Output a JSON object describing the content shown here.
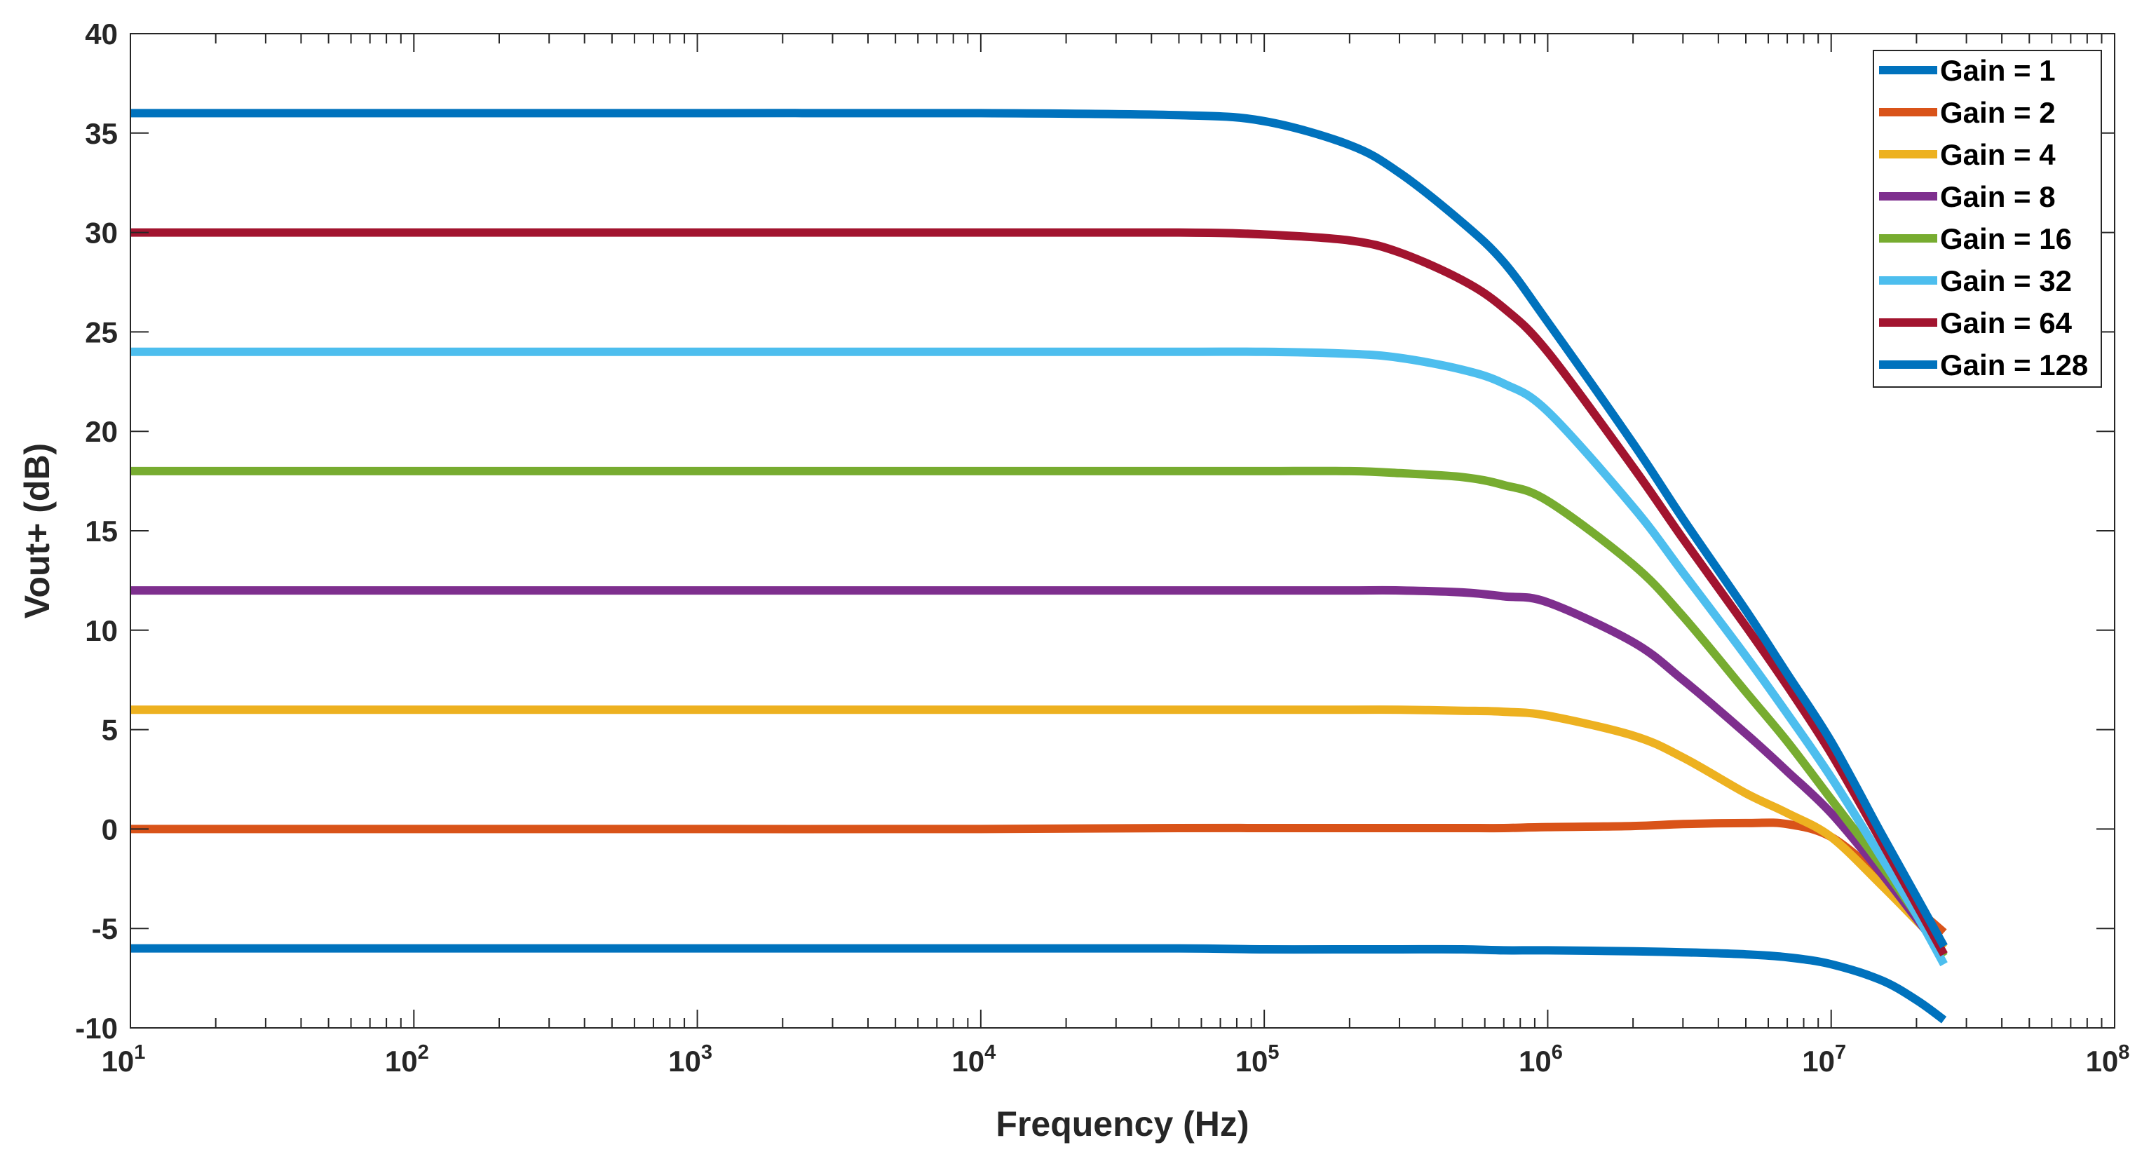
{
  "chart_data": {
    "type": "line",
    "title": "",
    "xlabel": "Frequency (Hz)",
    "ylabel": "Vout+  (dB)",
    "xscale": "log",
    "xlim": [
      10,
      100000000
    ],
    "ylim": [
      -10,
      40
    ],
    "x_ticks": [
      {
        "base": "10",
        "exp": "1"
      },
      {
        "base": "10",
        "exp": "2"
      },
      {
        "base": "10",
        "exp": "3"
      },
      {
        "base": "10",
        "exp": "4"
      },
      {
        "base": "10",
        "exp": "5"
      },
      {
        "base": "10",
        "exp": "6"
      },
      {
        "base": "10",
        "exp": "7"
      },
      {
        "base": "10",
        "exp": "8"
      }
    ],
    "y_ticks": [
      "-10",
      "-5",
      "0",
      "5",
      "10",
      "15",
      "20",
      "25",
      "30",
      "35",
      "40"
    ],
    "grid": false,
    "legend_position": "top-right",
    "x": [
      10,
      100,
      1000,
      10000,
      50000,
      100000,
      200000,
      300000,
      500000,
      700000,
      1000000,
      2000000,
      3000000,
      5000000,
      7000000,
      10000000,
      15000000,
      20000000,
      25000000
    ],
    "series": [
      {
        "name": "Gain = 1",
        "color": "#0072BD",
        "values": [
          -6.0,
          -6.0,
          -6.0,
          -6.0,
          -6.0,
          -6.05,
          -6.05,
          -6.05,
          -6.05,
          -6.1,
          -6.1,
          -6.15,
          -6.2,
          -6.3,
          -6.45,
          -6.8,
          -7.6,
          -8.6,
          -9.6
        ]
      },
      {
        "name": "Gain = 2",
        "color": "#D95319",
        "values": [
          0.0,
          0.0,
          0.0,
          0.0,
          0.05,
          0.05,
          0.05,
          0.05,
          0.05,
          0.05,
          0.1,
          0.15,
          0.25,
          0.3,
          0.25,
          -0.4,
          -2.4,
          -4.0,
          -5.2
        ]
      },
      {
        "name": "Gain = 4",
        "color": "#EDB120",
        "values": [
          6.0,
          6.0,
          6.0,
          6.0,
          6.0,
          6.0,
          6.0,
          6.0,
          5.95,
          5.9,
          5.7,
          4.7,
          3.6,
          1.8,
          0.8,
          -0.4,
          -2.8,
          -4.6,
          -6.0
        ]
      },
      {
        "name": "Gain = 8",
        "color": "#7E2F8E",
        "values": [
          12.0,
          12.0,
          12.0,
          12.0,
          12.0,
          12.0,
          12.0,
          12.0,
          11.9,
          11.7,
          11.4,
          9.4,
          7.5,
          4.8,
          2.9,
          0.8,
          -2.2,
          -4.5,
          -6.3
        ]
      },
      {
        "name": "Gain = 16",
        "color": "#77AC30",
        "values": [
          18.0,
          18.0,
          18.0,
          18.0,
          18.0,
          18.0,
          18.0,
          17.9,
          17.7,
          17.3,
          16.5,
          13.3,
          10.7,
          6.9,
          4.4,
          1.5,
          -1.8,
          -4.3,
          -6.4
        ]
      },
      {
        "name": "Gain = 32",
        "color": "#4DBEEE",
        "values": [
          24.0,
          24.0,
          24.0,
          24.0,
          24.0,
          24.0,
          23.9,
          23.7,
          23.1,
          22.4,
          21.0,
          16.2,
          12.9,
          8.7,
          5.8,
          2.6,
          -1.4,
          -4.3,
          -6.8
        ]
      },
      {
        "name": "Gain = 64",
        "color": "#A2142F",
        "values": [
          30.0,
          30.0,
          30.0,
          30.0,
          30.0,
          29.9,
          29.6,
          29.0,
          27.6,
          26.2,
          24.0,
          18.2,
          14.6,
          10.2,
          7.2,
          3.8,
          -0.6,
          -3.8,
          -6.3
        ]
      },
      {
        "name": "Gain = 128",
        "color": "#0072BD",
        "values": [
          36.0,
          36.0,
          36.0,
          36.0,
          35.9,
          35.6,
          34.4,
          33.0,
          30.5,
          28.5,
          25.5,
          19.4,
          15.6,
          11.0,
          7.8,
          4.4,
          -0.2,
          -3.4,
          -5.9
        ]
      }
    ]
  }
}
